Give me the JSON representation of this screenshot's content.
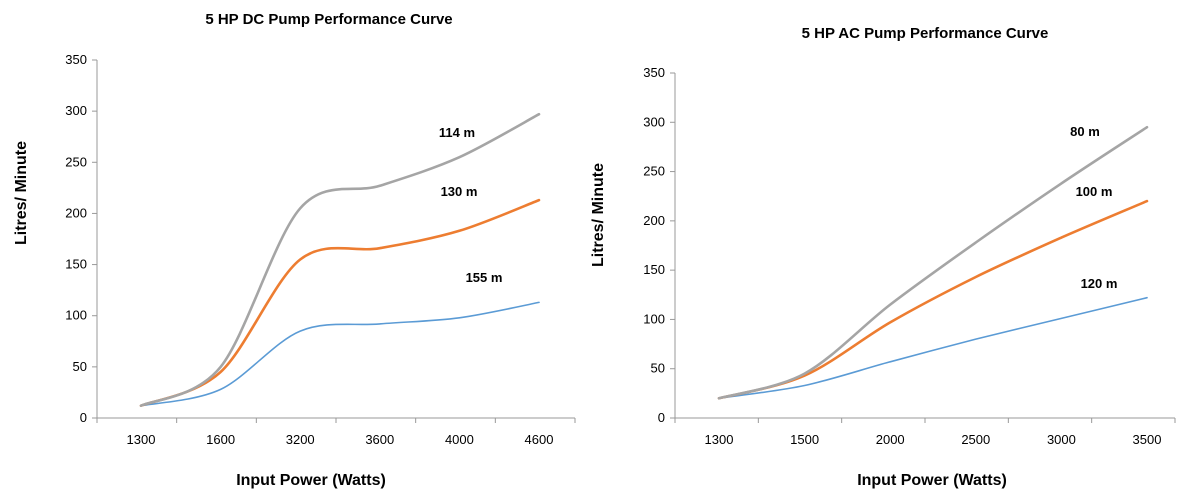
{
  "chart_data": [
    {
      "type": "line",
      "title": "5 HP DC Pump Performance Curve",
      "xlabel": "Input Power (Watts)",
      "ylabel": "Litres/ Minute",
      "categories": [
        "1300",
        "1600",
        "3200",
        "3600",
        "4000",
        "4600"
      ],
      "ylim": [
        0,
        350
      ],
      "yticks": [
        "0",
        "50",
        "100",
        "150",
        "200",
        "250",
        "300",
        "350"
      ],
      "grid": false,
      "series": [
        {
          "name": "114 m",
          "color": "#a5a5a5",
          "values": [
            12,
            50,
            205,
            227,
            255,
            297
          ]
        },
        {
          "name": "130 m",
          "color": "#ed7d31",
          "values": [
            12,
            45,
            155,
            166,
            183,
            213
          ]
        },
        {
          "name": "155 m",
          "color": "#5b9bd5",
          "values": [
            12,
            28,
            85,
            92,
            98,
            113
          ]
        }
      ]
    },
    {
      "type": "line",
      "title": "5 HP AC Pump Performance Curve",
      "xlabel": "Input Power (Watts)",
      "ylabel": "Litres/ Minute",
      "categories": [
        "1300",
        "1500",
        "2000",
        "2500",
        "3000",
        "3500"
      ],
      "ylim": [
        0,
        350
      ],
      "yticks": [
        "0",
        "50",
        "100",
        "150",
        "200",
        "250",
        "300",
        "350"
      ],
      "grid": false,
      "series": [
        {
          "name": "80 m",
          "color": "#a5a5a5",
          "values": [
            20,
            45,
            115,
            178,
            238,
            295
          ]
        },
        {
          "name": "100 m",
          "color": "#ed7d31",
          "values": [
            20,
            43,
            97,
            143,
            183,
            220
          ]
        },
        {
          "name": "120 m",
          "color": "#5b9bd5",
          "values": [
            20,
            33,
            57,
            80,
            101,
            122
          ]
        }
      ]
    }
  ]
}
